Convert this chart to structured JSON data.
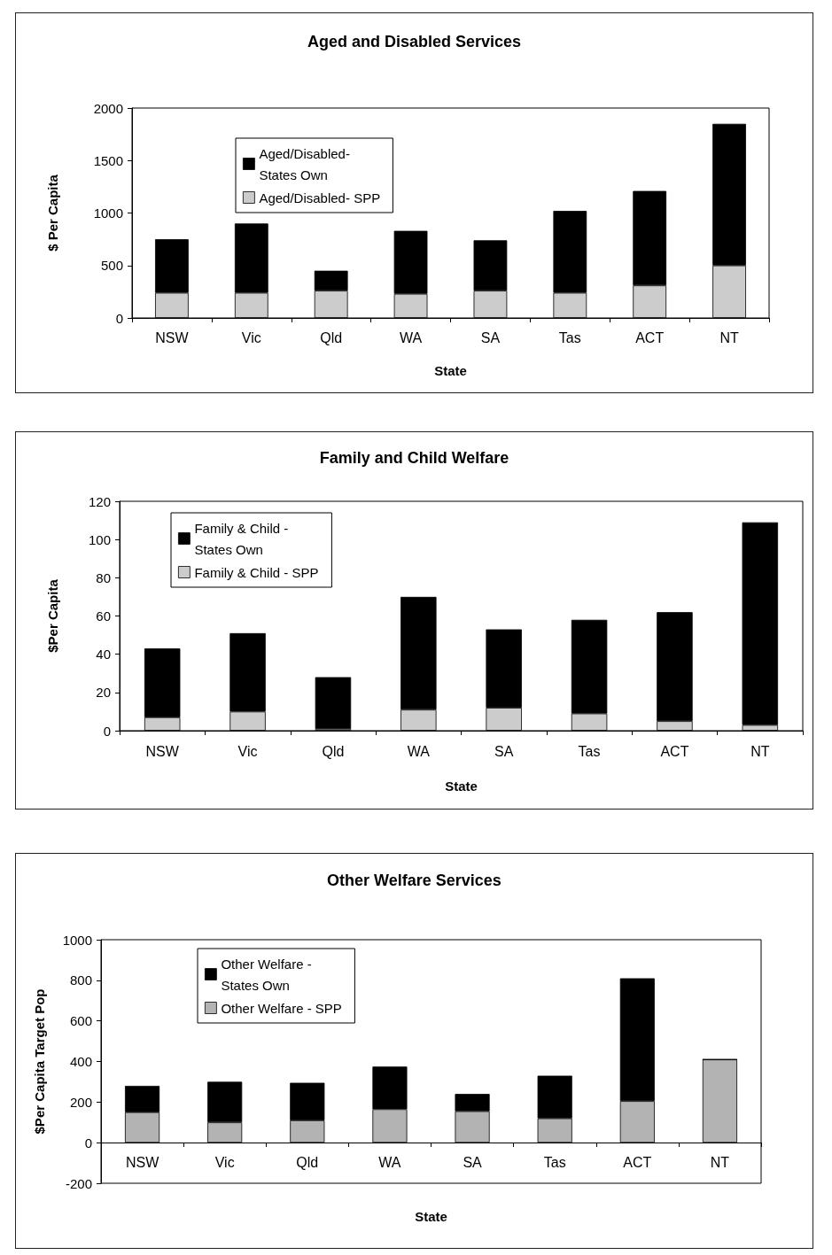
{
  "chart_data": [
    {
      "type": "bar",
      "title": "Aged and Disabled Services",
      "xlabel": "State",
      "ylabel": "$ Per Capita",
      "categories": [
        "NSW",
        "Vic",
        "Qld",
        "WA",
        "SA",
        "Tas",
        "ACT",
        "NT"
      ],
      "stacked": true,
      "series": [
        {
          "name": "Aged/Disabled- SPP",
          "color": "#cccccc",
          "values": [
            240,
            240,
            260,
            230,
            260,
            240,
            310,
            500
          ]
        },
        {
          "name": "Aged/Disabled- States Own",
          "color": "#000000",
          "values": [
            510,
            660,
            190,
            600,
            480,
            780,
            900,
            1350
          ]
        }
      ],
      "ylim": [
        0,
        2000
      ],
      "yticks": [
        0,
        500,
        1000,
        1500,
        2000
      ],
      "grid": false,
      "legend": "top left"
    },
    {
      "type": "bar",
      "title": "Family and Child Welfare",
      "xlabel": "State",
      "ylabel": "$Per Capita",
      "categories": [
        "NSW",
        "Vic",
        "Qld",
        "WA",
        "SA",
        "Tas",
        "ACT",
        "NT"
      ],
      "stacked": true,
      "series": [
        {
          "name": "Family & Child - SPP",
          "color": "#cccccc",
          "values": [
            7,
            10,
            1,
            11,
            12,
            9,
            5,
            3
          ]
        },
        {
          "name": "Family & Child - States Own",
          "color": "#000000",
          "values": [
            36,
            41,
            27,
            59,
            41,
            49,
            57,
            106
          ]
        }
      ],
      "ylim": [
        0,
        120
      ],
      "yticks": [
        0,
        20,
        40,
        60,
        80,
        100,
        120
      ],
      "grid": false,
      "legend": "top left"
    },
    {
      "type": "bar",
      "title": "Other Welfare Services",
      "xlabel": "State",
      "ylabel": "$Per Capita Target Pop",
      "categories": [
        "NSW",
        "Vic",
        "Qld",
        "WA",
        "SA",
        "Tas",
        "ACT",
        "NT"
      ],
      "stacked": true,
      "series": [
        {
          "name": "Other Welfare - SPP",
          "color": "#b3b3b3",
          "values": [
            150,
            100,
            110,
            165,
            155,
            120,
            205,
            410
          ]
        },
        {
          "name": "Other Welfare - States Own",
          "color": "#000000",
          "values": [
            130,
            200,
            185,
            210,
            85,
            210,
            605,
            0
          ]
        }
      ],
      "ylim": [
        -200,
        1000
      ],
      "yticks": [
        -200,
        0,
        200,
        400,
        600,
        800,
        1000
      ],
      "grid": false,
      "legend": "top left"
    }
  ]
}
